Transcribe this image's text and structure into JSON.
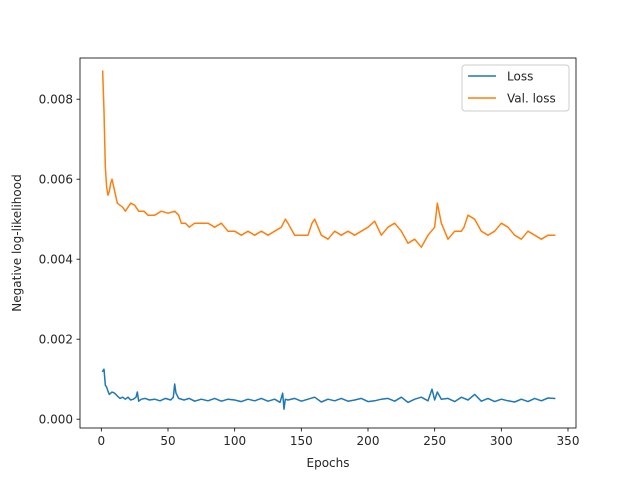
{
  "chart_data": {
    "type": "line",
    "title": "",
    "xlabel": "Epochs",
    "ylabel": "Negative log-likelihood",
    "xlim": [
      -16,
      356
    ],
    "ylim": [
      -0.00022,
      0.00903
    ],
    "xticks": [
      0,
      50,
      100,
      150,
      200,
      250,
      300,
      350
    ],
    "xtick_labels": [
      "0",
      "50",
      "100",
      "150",
      "200",
      "250",
      "300",
      "350"
    ],
    "yticks": [
      0.0,
      0.002,
      0.004,
      0.006,
      0.008
    ],
    "ytick_labels": [
      "0.000",
      "0.002",
      "0.004",
      "0.006",
      "0.008"
    ],
    "grid": false,
    "legend_position": "top-right",
    "series": [
      {
        "name": "Loss",
        "color": "#1f77b4",
        "x": [
          1,
          2,
          3,
          4,
          5,
          6,
          8,
          10,
          12,
          14,
          16,
          18,
          20,
          22,
          24,
          26,
          27,
          28,
          30,
          33,
          36,
          40,
          44,
          48,
          52,
          54,
          55,
          56,
          58,
          62,
          66,
          70,
          75,
          80,
          85,
          90,
          95,
          100,
          105,
          110,
          115,
          120,
          125,
          130,
          134,
          136,
          137,
          138,
          140,
          145,
          150,
          155,
          160,
          165,
          170,
          175,
          180,
          185,
          190,
          195,
          200,
          205,
          210,
          215,
          220,
          225,
          230,
          235,
          240,
          245,
          248,
          250,
          252,
          255,
          260,
          265,
          270,
          275,
          280,
          285,
          290,
          295,
          300,
          305,
          310,
          315,
          320,
          325,
          330,
          335,
          340
        ],
        "y": [
          0.0012,
          0.00125,
          0.00085,
          0.0008,
          0.0007,
          0.00062,
          0.00068,
          0.00065,
          0.00058,
          0.00052,
          0.00055,
          0.0005,
          0.00055,
          0.00048,
          0.0005,
          0.00055,
          0.00068,
          0.00045,
          0.0005,
          0.00052,
          0.00048,
          0.0005,
          0.00046,
          0.00052,
          0.00048,
          0.00055,
          0.00088,
          0.00065,
          0.00052,
          0.00048,
          0.00052,
          0.00045,
          0.0005,
          0.00046,
          0.00052,
          0.00045,
          0.0005,
          0.00048,
          0.00044,
          0.0005,
          0.00046,
          0.00052,
          0.00045,
          0.0005,
          0.00042,
          0.00065,
          0.00025,
          0.0005,
          0.00048,
          0.00052,
          0.00045,
          0.0005,
          0.00055,
          0.00043,
          0.0005,
          0.00046,
          0.00052,
          0.00045,
          0.00048,
          0.00052,
          0.00044,
          0.00046,
          0.0005,
          0.00052,
          0.00045,
          0.00055,
          0.00042,
          0.0005,
          0.00055,
          0.00046,
          0.00075,
          0.00048,
          0.00068,
          0.0005,
          0.00052,
          0.00044,
          0.00055,
          0.00048,
          0.00062,
          0.00045,
          0.00052,
          0.00044,
          0.0005,
          0.00046,
          0.00043,
          0.0005,
          0.00044,
          0.00052,
          0.00046,
          0.00053,
          0.00052
        ]
      },
      {
        "name": "Val. loss",
        "color": "#ff7f0e",
        "x": [
          1,
          2,
          3,
          4,
          5,
          6,
          7,
          8,
          10,
          12,
          14,
          16,
          18,
          20,
          22,
          25,
          28,
          32,
          35,
          40,
          45,
          50,
          55,
          58,
          60,
          63,
          66,
          70,
          75,
          80,
          85,
          90,
          95,
          100,
          105,
          110,
          115,
          120,
          125,
          130,
          135,
          138,
          140,
          145,
          150,
          155,
          158,
          160,
          165,
          170,
          175,
          180,
          185,
          190,
          195,
          200,
          205,
          210,
          215,
          220,
          225,
          230,
          235,
          240,
          245,
          250,
          252,
          255,
          260,
          265,
          270,
          272,
          275,
          280,
          285,
          290,
          295,
          300,
          305,
          310,
          315,
          320,
          325,
          330,
          335,
          340
        ],
        "y": [
          0.0087,
          0.0077,
          0.0063,
          0.0058,
          0.0056,
          0.0057,
          0.0059,
          0.006,
          0.0057,
          0.0054,
          0.00535,
          0.0053,
          0.0052,
          0.0053,
          0.0054,
          0.00535,
          0.0052,
          0.0052,
          0.0051,
          0.0051,
          0.0052,
          0.00515,
          0.0052,
          0.0051,
          0.0049,
          0.0049,
          0.0048,
          0.0049,
          0.0049,
          0.0049,
          0.0048,
          0.0049,
          0.0047,
          0.0047,
          0.0046,
          0.0047,
          0.0046,
          0.0047,
          0.0046,
          0.0047,
          0.0048,
          0.005,
          0.0049,
          0.0046,
          0.0046,
          0.0046,
          0.0049,
          0.005,
          0.0046,
          0.0045,
          0.0047,
          0.0046,
          0.0047,
          0.0046,
          0.0047,
          0.0048,
          0.00495,
          0.0046,
          0.0048,
          0.0049,
          0.0047,
          0.0044,
          0.0045,
          0.0043,
          0.0046,
          0.0048,
          0.0054,
          0.0049,
          0.0045,
          0.0047,
          0.0047,
          0.0048,
          0.0051,
          0.005,
          0.0047,
          0.0046,
          0.0047,
          0.0049,
          0.0048,
          0.0046,
          0.0045,
          0.0047,
          0.0046,
          0.0045,
          0.0046,
          0.0046
        ]
      }
    ]
  }
}
